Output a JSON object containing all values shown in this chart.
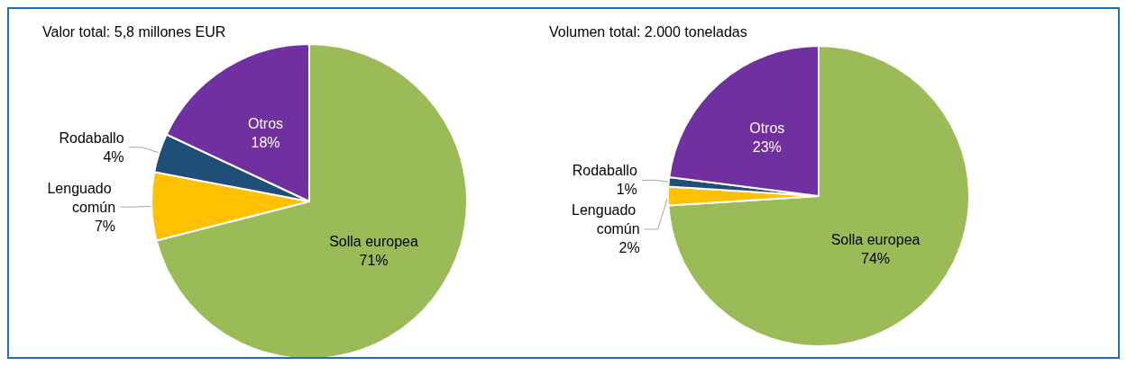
{
  "chart_data": [
    {
      "type": "pie",
      "title": "Valor total: 5,8 millones EUR",
      "categories": [
        "Solla europea",
        "Lenguado común",
        "Rodaballo",
        "Otros"
      ],
      "values": [
        71,
        7,
        4,
        18
      ],
      "value_labels": [
        "71%",
        "7%",
        "4%",
        "18%"
      ],
      "colors": [
        "#9bbb59",
        "#ffc000",
        "#1f4e79",
        "#7030a0"
      ],
      "legend": false
    },
    {
      "type": "pie",
      "title": "Volumen total: 2.000 toneladas",
      "categories": [
        "Solla europea",
        "Lenguado común",
        "Rodaballo",
        "Otros"
      ],
      "values": [
        74,
        2,
        1,
        23
      ],
      "value_labels": [
        "74%",
        "2%",
        "1%",
        "23%"
      ],
      "colors": [
        "#9bbb59",
        "#ffc000",
        "#1f4e79",
        "#7030a0"
      ],
      "legend": false
    }
  ]
}
